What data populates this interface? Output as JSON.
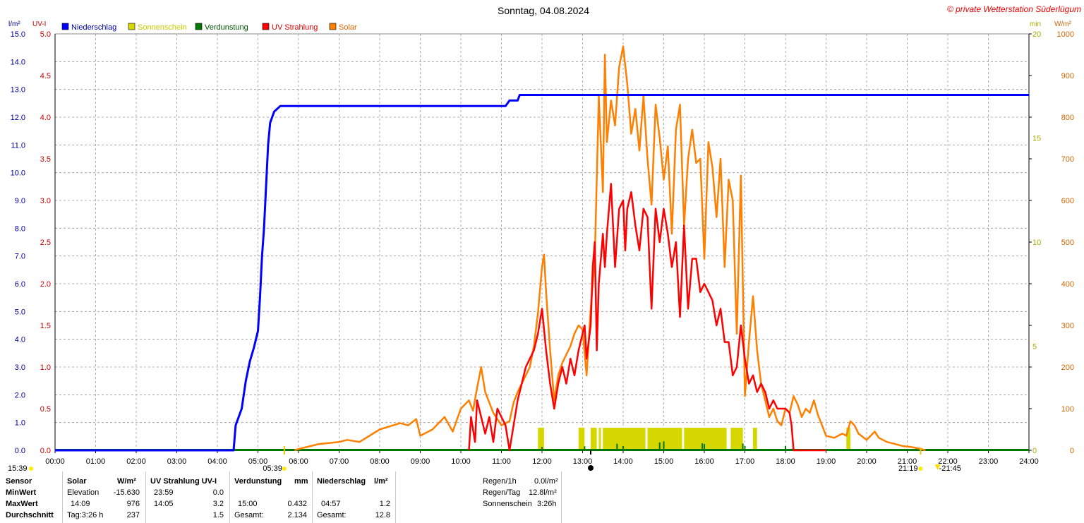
{
  "title": "Sonntag, 04.08.2024",
  "copyright": "© private Wetterstation Süderlügum",
  "colors": {
    "rain": "#0000ff",
    "sun": "#d7d700",
    "evap": "#007700",
    "uv": "#ff0000",
    "solar": "#ff8000",
    "rain_axis": "#000099",
    "uv_axis": "#cc0000",
    "sun_axis": "#aaaa00",
    "solar_axis": "#cc6600",
    "grid": "#999999"
  },
  "axes": {
    "rain_unit": "l/m²",
    "uv_unit": "UV-I",
    "sun_unit": "min",
    "solar_unit": "W/m²",
    "rain_ticks": [
      "0.0",
      "1.0",
      "2.0",
      "3.0",
      "4.0",
      "5.0",
      "6.0",
      "7.0",
      "8.0",
      "9.0",
      "10.0",
      "11.0",
      "12.0",
      "13.0",
      "14.0",
      "15.0"
    ],
    "uv_ticks": [
      "0.0",
      "0.5",
      "1.0",
      "1.5",
      "2.0",
      "2.5",
      "3.0",
      "3.5",
      "4.0",
      "4.5",
      "5.0"
    ],
    "sun_ticks": [
      "0",
      "5",
      "10",
      "15",
      "20"
    ],
    "solar_ticks": [
      "0",
      "100",
      "200",
      "300",
      "400",
      "500",
      "600",
      "700",
      "800",
      "900",
      "1000"
    ],
    "time_ticks": [
      "00:00",
      "01:00",
      "02:00",
      "03:00",
      "04:00",
      "05:00",
      "06:00",
      "07:00",
      "08:00",
      "09:00",
      "10:00",
      "11:00",
      "12:00",
      "13:00",
      "14:00",
      "15:00",
      "16:00",
      "17:00",
      "18:00",
      "19:00",
      "20:00",
      "21:00",
      "22:00",
      "23:00",
      "24:00"
    ]
  },
  "legend": [
    {
      "label": "Niederschlag",
      "color": "#0000ff",
      "text_color": "#0000aa"
    },
    {
      "label": "Sonnenschein",
      "color": "#d7d700",
      "text_color": "#c8c800"
    },
    {
      "label": "Verdunstung",
      "color": "#007700",
      "text_color": "#005500"
    },
    {
      "label": "UV Strahlung",
      "color": "#ff0000",
      "text_color": "#dd0000"
    },
    {
      "label": "Solar",
      "color": "#ff8000",
      "text_color": "#dd6600"
    }
  ],
  "markers": {
    "left_time": "15:39",
    "sunrise": "05:39",
    "sunset_a": "21:19",
    "sunset_b": "21:45"
  },
  "chart_data": {
    "type": "line",
    "x_unit": "hour of day",
    "xlim": [
      0,
      24
    ],
    "series": [
      {
        "name": "Niederschlag",
        "axis": "l/m²",
        "ylim": [
          0,
          15
        ],
        "points": [
          [
            0,
            0
          ],
          [
            4.4,
            0
          ],
          [
            4.45,
            0.9
          ],
          [
            4.6,
            1.5
          ],
          [
            4.7,
            2.5
          ],
          [
            4.8,
            3.2
          ],
          [
            4.9,
            3.7
          ],
          [
            5.0,
            4.3
          ],
          [
            5.05,
            5.5
          ],
          [
            5.1,
            7.0
          ],
          [
            5.15,
            8.0
          ],
          [
            5.2,
            9.5
          ],
          [
            5.25,
            11.0
          ],
          [
            5.3,
            11.8
          ],
          [
            5.4,
            12.2
          ],
          [
            5.55,
            12.4
          ],
          [
            11.1,
            12.4
          ],
          [
            11.2,
            12.6
          ],
          [
            11.4,
            12.6
          ],
          [
            11.45,
            12.8
          ],
          [
            24,
            12.8
          ]
        ]
      },
      {
        "name": "UV Strahlung",
        "axis": "UV-I",
        "ylim": [
          0,
          5
        ],
        "points": [
          [
            10.2,
            0
          ],
          [
            10.25,
            0.4
          ],
          [
            10.35,
            0.1
          ],
          [
            10.4,
            0.6
          ],
          [
            10.5,
            0.4
          ],
          [
            10.6,
            0.2
          ],
          [
            10.7,
            0.4
          ],
          [
            10.8,
            0.1
          ],
          [
            10.9,
            0.5
          ],
          [
            11.0,
            0.4
          ],
          [
            11.1,
            0.3
          ],
          [
            11.2,
            0
          ],
          [
            11.4,
            0.6
          ],
          [
            11.5,
            0.8
          ],
          [
            11.6,
            1.0
          ],
          [
            11.7,
            1.1
          ],
          [
            11.8,
            1.2
          ],
          [
            11.9,
            1.4
          ],
          [
            12.0,
            1.7
          ],
          [
            12.1,
            1.2
          ],
          [
            12.2,
            0.8
          ],
          [
            12.3,
            0.5
          ],
          [
            12.4,
            0.8
          ],
          [
            12.5,
            1.0
          ],
          [
            12.6,
            0.8
          ],
          [
            12.7,
            1.1
          ],
          [
            12.8,
            0.9
          ],
          [
            12.9,
            1.2
          ],
          [
            13.0,
            1.4
          ],
          [
            13.05,
            1.5
          ],
          [
            13.1,
            1.1
          ],
          [
            13.2,
            1.5
          ],
          [
            13.25,
            2.2
          ],
          [
            13.3,
            2.5
          ],
          [
            13.35,
            1.2
          ],
          [
            13.4,
            2.0
          ],
          [
            13.5,
            2.6
          ],
          [
            13.55,
            2.2
          ],
          [
            13.6,
            2.6
          ],
          [
            13.7,
            3.2
          ],
          [
            13.8,
            2.2
          ],
          [
            13.9,
            2.9
          ],
          [
            14.0,
            3.0
          ],
          [
            14.05,
            2.4
          ],
          [
            14.1,
            2.9
          ],
          [
            14.2,
            3.1
          ],
          [
            14.3,
            2.7
          ],
          [
            14.4,
            2.4
          ],
          [
            14.5,
            2.9
          ],
          [
            14.6,
            2.8
          ],
          [
            14.7,
            1.7
          ],
          [
            14.8,
            2.9
          ],
          [
            14.9,
            2.5
          ],
          [
            15.0,
            2.9
          ],
          [
            15.1,
            2.6
          ],
          [
            15.2,
            2.2
          ],
          [
            15.3,
            2.5
          ],
          [
            15.4,
            1.6
          ],
          [
            15.5,
            2.7
          ],
          [
            15.6,
            1.7
          ],
          [
            15.7,
            2.3
          ],
          [
            15.8,
            2.3
          ],
          [
            15.9,
            1.9
          ],
          [
            16.0,
            2.0
          ],
          [
            16.1,
            1.9
          ],
          [
            16.2,
            1.8
          ],
          [
            16.3,
            1.5
          ],
          [
            16.4,
            1.7
          ],
          [
            16.5,
            1.3
          ],
          [
            16.6,
            1.3
          ],
          [
            16.7,
            0.9
          ],
          [
            16.8,
            1.0
          ],
          [
            16.9,
            1.5
          ],
          [
            17.0,
            1.1
          ],
          [
            17.1,
            0.8
          ],
          [
            17.2,
            0.9
          ],
          [
            17.3,
            0.7
          ],
          [
            17.4,
            0.8
          ],
          [
            17.5,
            0.7
          ],
          [
            17.6,
            0.5
          ],
          [
            17.7,
            0.6
          ],
          [
            17.8,
            0.5
          ],
          [
            17.9,
            0.5
          ],
          [
            18.0,
            0.5
          ],
          [
            18.1,
            0.45
          ],
          [
            18.15,
            0.3
          ],
          [
            18.2,
            0
          ],
          [
            19.0,
            0
          ]
        ]
      },
      {
        "name": "Solar",
        "axis": "W/m²",
        "ylim": [
          0,
          1000
        ],
        "points": [
          [
            5.9,
            0
          ],
          [
            6.0,
            3
          ],
          [
            6.5,
            15
          ],
          [
            7.0,
            20
          ],
          [
            7.2,
            25
          ],
          [
            7.5,
            20
          ],
          [
            8.0,
            50
          ],
          [
            8.5,
            65
          ],
          [
            8.7,
            60
          ],
          [
            8.9,
            75
          ],
          [
            9.0,
            35
          ],
          [
            9.3,
            50
          ],
          [
            9.6,
            80
          ],
          [
            9.8,
            45
          ],
          [
            10.0,
            100
          ],
          [
            10.2,
            120
          ],
          [
            10.3,
            95
          ],
          [
            10.4,
            150
          ],
          [
            10.5,
            200
          ],
          [
            10.6,
            140
          ],
          [
            10.8,
            90
          ],
          [
            11.0,
            60
          ],
          [
            11.2,
            70
          ],
          [
            11.3,
            115
          ],
          [
            11.4,
            140
          ],
          [
            11.5,
            160
          ],
          [
            11.7,
            200
          ],
          [
            11.8,
            250
          ],
          [
            11.9,
            330
          ],
          [
            12.0,
            440
          ],
          [
            12.05,
            470
          ],
          [
            12.1,
            380
          ],
          [
            12.2,
            240
          ],
          [
            12.3,
            120
          ],
          [
            12.4,
            180
          ],
          [
            12.5,
            210
          ],
          [
            12.6,
            230
          ],
          [
            12.7,
            250
          ],
          [
            12.8,
            280
          ],
          [
            12.9,
            300
          ],
          [
            13.0,
            290
          ],
          [
            13.1,
            180
          ],
          [
            13.2,
            340
          ],
          [
            13.3,
            460
          ],
          [
            13.4,
            850
          ],
          [
            13.5,
            620
          ],
          [
            13.55,
            950
          ],
          [
            13.6,
            740
          ],
          [
            13.7,
            840
          ],
          [
            13.8,
            780
          ],
          [
            13.9,
            920
          ],
          [
            14.0,
            970
          ],
          [
            14.1,
            880
          ],
          [
            14.2,
            760
          ],
          [
            14.3,
            820
          ],
          [
            14.4,
            720
          ],
          [
            14.5,
            850
          ],
          [
            14.6,
            700
          ],
          [
            14.7,
            590
          ],
          [
            14.8,
            830
          ],
          [
            14.9,
            750
          ],
          [
            15.0,
            650
          ],
          [
            15.1,
            730
          ],
          [
            15.2,
            520
          ],
          [
            15.3,
            770
          ],
          [
            15.4,
            830
          ],
          [
            15.5,
            540
          ],
          [
            15.6,
            700
          ],
          [
            15.7,
            770
          ],
          [
            15.8,
            690
          ],
          [
            15.9,
            700
          ],
          [
            16.0,
            460
          ],
          [
            16.1,
            740
          ],
          [
            16.2,
            680
          ],
          [
            16.3,
            560
          ],
          [
            16.4,
            700
          ],
          [
            16.5,
            440
          ],
          [
            16.6,
            650
          ],
          [
            16.7,
            600
          ],
          [
            16.8,
            280
          ],
          [
            16.9,
            660
          ],
          [
            17.0,
            130
          ],
          [
            17.1,
            260
          ],
          [
            17.2,
            370
          ],
          [
            17.3,
            240
          ],
          [
            17.4,
            160
          ],
          [
            17.5,
            120
          ],
          [
            17.6,
            80
          ],
          [
            17.7,
            100
          ],
          [
            17.8,
            70
          ],
          [
            17.9,
            60
          ],
          [
            18.0,
            100
          ],
          [
            18.1,
            90
          ],
          [
            18.2,
            130
          ],
          [
            18.3,
            110
          ],
          [
            18.4,
            80
          ],
          [
            18.5,
            100
          ],
          [
            18.6,
            90
          ],
          [
            18.7,
            120
          ],
          [
            18.8,
            85
          ],
          [
            18.9,
            60
          ],
          [
            19.0,
            35
          ],
          [
            19.2,
            30
          ],
          [
            19.4,
            40
          ],
          [
            19.5,
            35
          ],
          [
            19.6,
            70
          ],
          [
            19.7,
            60
          ],
          [
            19.8,
            40
          ],
          [
            20.0,
            25
          ],
          [
            20.2,
            45
          ],
          [
            20.3,
            30
          ],
          [
            20.5,
            20
          ],
          [
            20.7,
            15
          ],
          [
            20.9,
            10
          ],
          [
            21.1,
            8
          ],
          [
            21.3,
            4
          ],
          [
            21.45,
            0
          ]
        ]
      }
    ],
    "sunshine_blocks": [
      [
        11.9,
        12.05
      ],
      [
        12.9,
        13.05
      ],
      [
        13.2,
        13.35
      ],
      [
        13.4,
        13.45
      ],
      [
        13.5,
        14.55
      ],
      [
        14.6,
        15.45
      ],
      [
        15.5,
        16.55
      ],
      [
        16.65,
        16.95
      ],
      [
        17.2,
        17.3
      ],
      [
        19.5,
        19.6
      ]
    ],
    "verdunstung_points": [
      [
        12.0,
        0.04
      ],
      [
        13.05,
        0.08
      ],
      [
        13.85,
        0.26
      ],
      [
        14.0,
        0.1
      ],
      [
        14.9,
        0.36
      ],
      [
        15.0,
        0.432
      ],
      [
        15.95,
        0.3
      ],
      [
        16.0,
        0.25
      ],
      [
        16.95,
        0.28
      ],
      [
        17.0,
        0.1
      ],
      [
        18.0,
        0.1
      ]
    ],
    "sunrise": 5.65,
    "sunset": 21.33
  },
  "stats": {
    "headers": {
      "sensor": "Sensor",
      "solar": "Solar",
      "solar_unit": "W/m²",
      "uv": "UV Strahlung UV-I",
      "evap": "Verdunstung",
      "evap_unit": "mm",
      "rain": "Niederschlag",
      "rain_unit": "l/m²"
    },
    "row_labels": {
      "min": "MinWert",
      "max": "MaxWert",
      "avg": "Durchschnitt"
    },
    "solar": {
      "min_time": "Elevation",
      "min_val": "-15.630",
      "max_time": "14:09",
      "max_val": "976",
      "avg_time": "Tag:3:26 h",
      "avg_val": "237"
    },
    "uv": {
      "min_time": "23:59",
      "min_val": "0.0",
      "max_time": "14:05",
      "max_val": "3.2",
      "avg_val": "1.5"
    },
    "evap": {
      "max_time": "15:00",
      "max_val": "0.432",
      "total_label": "Gesamt:",
      "total_val": "2.134"
    },
    "rain": {
      "max_time": "04:57",
      "max_val": "1.2",
      "total_label": "Gesamt:",
      "total_val": "12.8"
    },
    "summary": [
      {
        "label": "Regen/1h",
        "value": "0.0l/m²"
      },
      {
        "label": "Regen/Tag",
        "value": "12.8l/m²"
      },
      {
        "label": "Sonnenschein",
        "value": "3:26h"
      }
    ]
  }
}
